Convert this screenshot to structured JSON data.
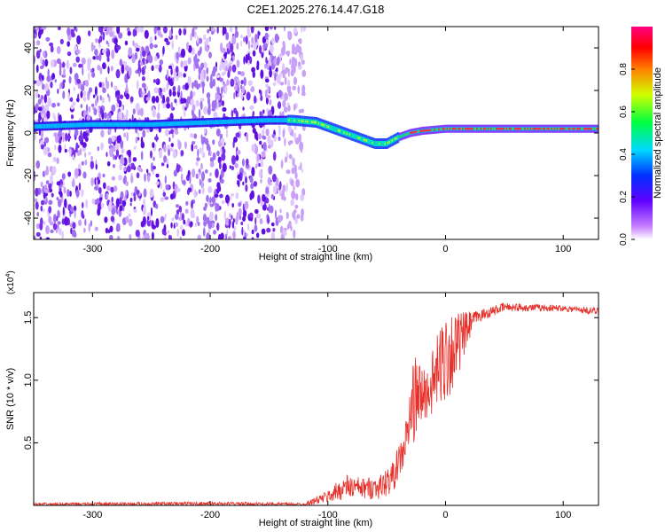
{
  "title": "C2E1.2025.276.14.47.G18",
  "colors": {
    "snr_line": "#e8302a",
    "axis": "#000000",
    "background": "#ffffff"
  },
  "chart_data": [
    {
      "type": "heatmap",
      "name": "spectrogram",
      "xlabel": "Height of straight line (km)",
      "ylabel": "Frequency (Hz)",
      "xlim": [
        -350,
        130
      ],
      "ylim": [
        -50,
        50
      ],
      "xticks": [
        -300,
        -200,
        -100,
        0,
        100
      ],
      "yticks": [
        -40,
        -20,
        0,
        20,
        40
      ],
      "colorbar": {
        "label": "Normalized spectral amplitude",
        "range": [
          0,
          1
        ],
        "ticks": [
          "0.0",
          "0.2",
          "0.4",
          "0.6",
          "0.8"
        ],
        "colormap": "rainbow (white-violet-blue-cyan-green-yellow-red-magenta)"
      },
      "signal_track": [
        {
          "x": -350,
          "f": 3
        },
        {
          "x": -300,
          "f": 4
        },
        {
          "x": -250,
          "f": 4
        },
        {
          "x": -200,
          "f": 5
        },
        {
          "x": -150,
          "f": 6
        },
        {
          "x": -130,
          "f": 6
        },
        {
          "x": -110,
          "f": 5
        },
        {
          "x": -90,
          "f": 1
        },
        {
          "x": -75,
          "f": -2
        },
        {
          "x": -60,
          "f": -5
        },
        {
          "x": -50,
          "f": -5
        },
        {
          "x": -40,
          "f": -2
        },
        {
          "x": -30,
          "f": 0
        },
        {
          "x": -20,
          "f": 1
        },
        {
          "x": 0,
          "f": 2
        },
        {
          "x": 50,
          "f": 2
        },
        {
          "x": 100,
          "f": 2
        },
        {
          "x": 130,
          "f": 2
        }
      ],
      "noise_region_xlim": [
        -350,
        -135
      ]
    },
    {
      "type": "line",
      "name": "snr",
      "xlabel": "Height of straight line (km)",
      "ylabel": "SNR (10 * v/v)",
      "scale_label": "(x10",
      "scale_exponent": "4",
      "scale_suffix": ")",
      "xlim": [
        -350,
        130
      ],
      "ylim": [
        0,
        1.7
      ],
      "xticks": [
        -300,
        -200,
        -100,
        0,
        100
      ],
      "yticks": [
        "0.5",
        "1.0",
        "1.5"
      ],
      "envelope": [
        {
          "x": -350,
          "lo": 0.0,
          "hi": 0.02
        },
        {
          "x": -200,
          "lo": 0.0,
          "hi": 0.03
        },
        {
          "x": -120,
          "lo": 0.0,
          "hi": 0.02
        },
        {
          "x": -100,
          "lo": 0.02,
          "hi": 0.12
        },
        {
          "x": -85,
          "lo": 0.05,
          "hi": 0.25
        },
        {
          "x": -70,
          "lo": 0.05,
          "hi": 0.22
        },
        {
          "x": -55,
          "lo": 0.05,
          "hi": 0.25
        },
        {
          "x": -45,
          "lo": 0.1,
          "hi": 0.35
        },
        {
          "x": -35,
          "lo": 0.3,
          "hi": 0.6
        },
        {
          "x": -27,
          "lo": 0.5,
          "hi": 1.2
        },
        {
          "x": -15,
          "lo": 0.7,
          "hi": 1.1
        },
        {
          "x": 0,
          "lo": 0.8,
          "hi": 1.6
        },
        {
          "x": 10,
          "lo": 1.0,
          "hi": 1.55
        },
        {
          "x": 25,
          "lo": 1.45,
          "hi": 1.55
        },
        {
          "x": 50,
          "lo": 1.55,
          "hi": 1.62
        },
        {
          "x": 100,
          "lo": 1.55,
          "hi": 1.6
        },
        {
          "x": 130,
          "lo": 1.52,
          "hi": 1.58
        }
      ]
    }
  ]
}
